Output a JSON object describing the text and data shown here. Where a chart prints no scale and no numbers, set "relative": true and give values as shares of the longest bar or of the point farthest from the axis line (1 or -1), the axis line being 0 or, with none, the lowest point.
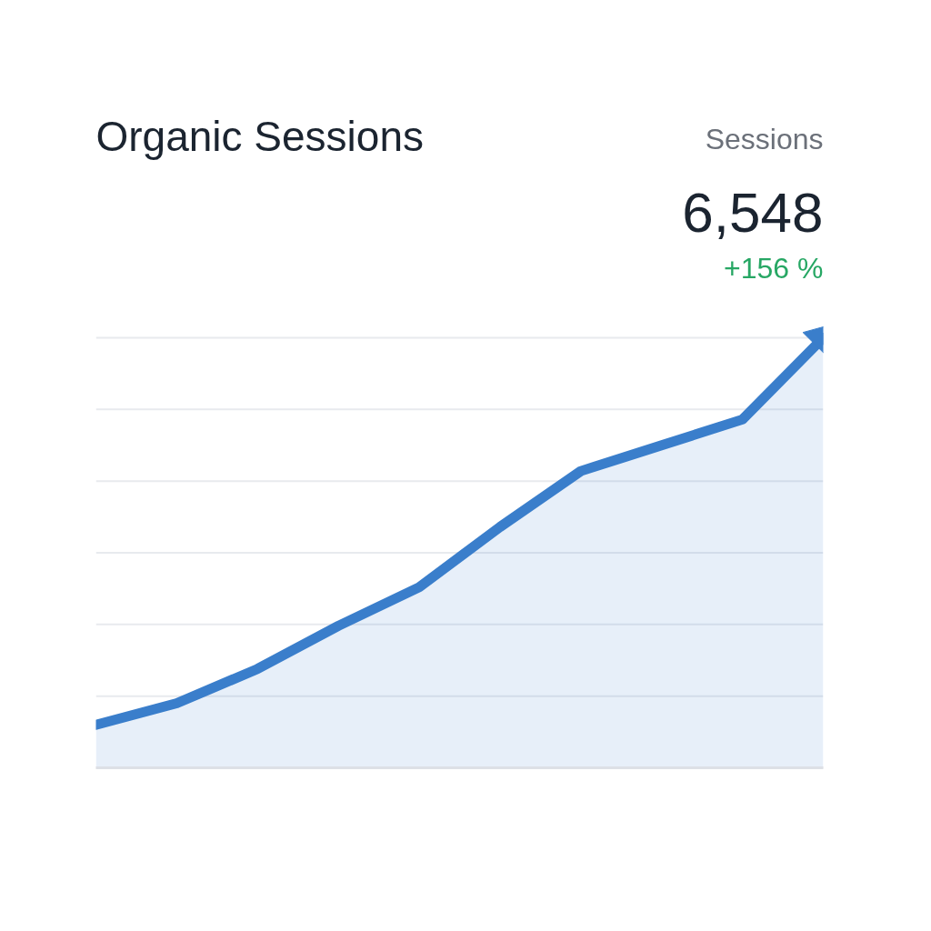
{
  "chart_data": {
    "type": "area",
    "title": "Organic Sessions",
    "annotations": [
      "Sessions",
      "6,548",
      "+156 %"
    ],
    "categories": [
      null,
      null,
      null,
      null,
      null,
      null,
      null,
      null,
      null,
      null
    ],
    "series": [
      {
        "color": "#3a7ecb",
        "values": [
          0.1,
          0.15,
          0.23,
          0.33,
          0.42,
          0.56,
          0.69,
          0.75,
          0.81,
          1.0
        ]
      }
    ],
    "relative": true,
    "grid": "y"
  }
}
